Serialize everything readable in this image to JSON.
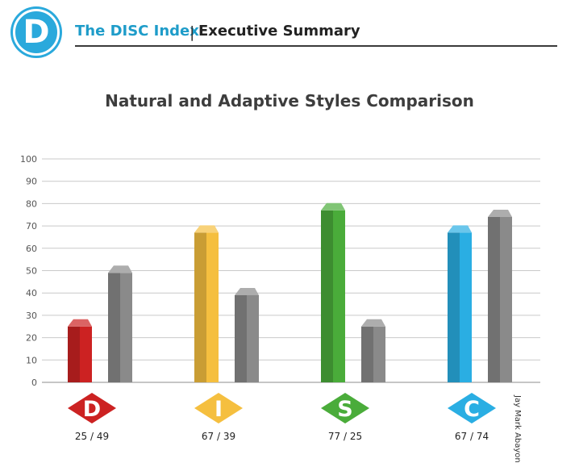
{
  "header": {
    "logo_letter": "D",
    "brand": "The DISC Index",
    "separator": "|",
    "section": "Executive Summary"
  },
  "credit": "Jay Mark Abayon",
  "colors": {
    "D": "#cc2222",
    "I": "#f5bf3f",
    "S": "#4aac3a",
    "C": "#2aaee3",
    "adaptive": "#8a8a8a"
  },
  "chart_data": {
    "type": "bar",
    "title": "Natural and Adaptive Styles Comparison",
    "categories": [
      "D",
      "I",
      "S",
      "C"
    ],
    "series": [
      {
        "values": [
          25,
          67,
          77,
          67
        ]
      },
      {
        "values": [
          49,
          39,
          25,
          74
        ]
      }
    ],
    "value_labels": [
      "25 / 49",
      "67 / 39",
      "77 / 25",
      "67 / 74"
    ],
    "ylim": [
      0,
      100
    ],
    "yticks": [
      0,
      10,
      20,
      30,
      40,
      50,
      60,
      70,
      80,
      90,
      100
    ],
    "grid": true
  }
}
